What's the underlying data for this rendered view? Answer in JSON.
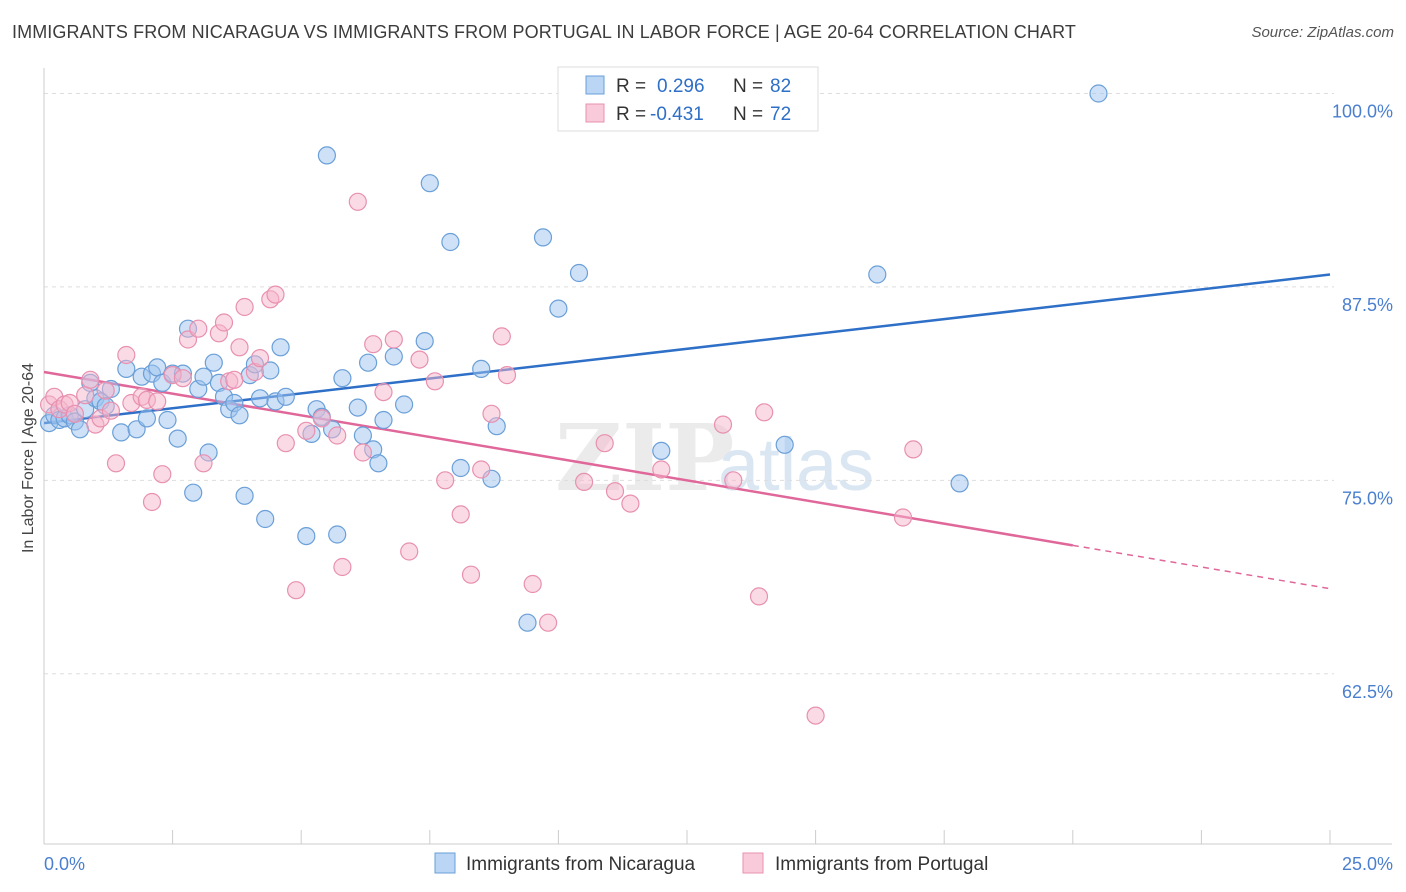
{
  "title": "IMMIGRANTS FROM NICARAGUA VS IMMIGRANTS FROM PORTUGAL IN LABOR FORCE | AGE 20-64 CORRELATION CHART",
  "source": "Source: ZipAtlas.com",
  "watermark": {
    "zip": "ZIP",
    "atlas": "atlas"
  },
  "colors": {
    "nicaragua_fill": "#9ec4ef",
    "nicaragua_stroke": "#6a9fd8",
    "nicaragua_line": "#2e6fc7",
    "portugal_fill": "#f6b5cb",
    "portugal_stroke": "#e890b0",
    "portugal_line": "#e0679a",
    "axis_text": "#4a7fcf",
    "grid": "#dddddd"
  },
  "legend_stats": [
    {
      "r_label": "R =",
      "r_value": "0.296",
      "n_label": "N =",
      "n_value": "82"
    },
    {
      "r_label": "R =",
      "r_value": "-0.431",
      "n_label": "N =",
      "n_value": "72"
    }
  ],
  "chart_data": {
    "type": "scatter",
    "ylabel": "In Labor Force | Age 20-64",
    "xlim": [
      0,
      25
    ],
    "ylim": [
      51.5,
      101
    ],
    "x_tick_labels": [
      "0.0%",
      "25.0%"
    ],
    "y_ticks": [
      {
        "value": 100,
        "label": "100.0%"
      },
      {
        "value": 87.5,
        "label": "87.5%"
      },
      {
        "value": 75,
        "label": "75.0%"
      },
      {
        "value": 62.5,
        "label": "62.5%"
      }
    ],
    "grid": true,
    "legend_position": "bottom-center",
    "series": [
      {
        "name": "Immigrants from Nicaragua",
        "trend": {
          "x": [
            0,
            25
          ],
          "y": [
            78.7,
            88.3
          ]
        },
        "points": [
          [
            0.1,
            78.7
          ],
          [
            0.2,
            79.2
          ],
          [
            0.3,
            78.9
          ],
          [
            0.4,
            79.0
          ],
          [
            0.5,
            79.2
          ],
          [
            0.6,
            78.8
          ],
          [
            0.7,
            78.3
          ],
          [
            0.8,
            79.6
          ],
          [
            0.9,
            81.3
          ],
          [
            1.0,
            80.3
          ],
          [
            1.1,
            80.1
          ],
          [
            1.2,
            79.8
          ],
          [
            1.3,
            80.9
          ],
          [
            1.5,
            78.1
          ],
          [
            1.6,
            82.2
          ],
          [
            1.8,
            78.3
          ],
          [
            1.9,
            81.7
          ],
          [
            2.0,
            79.0
          ],
          [
            2.1,
            81.9
          ],
          [
            2.2,
            82.3
          ],
          [
            2.3,
            81.3
          ],
          [
            2.4,
            78.9
          ],
          [
            2.5,
            81.9
          ],
          [
            2.6,
            77.7
          ],
          [
            2.7,
            81.9
          ],
          [
            2.8,
            84.8
          ],
          [
            2.9,
            74.2
          ],
          [
            3.0,
            80.9
          ],
          [
            3.1,
            81.7
          ],
          [
            3.2,
            76.8
          ],
          [
            3.3,
            82.6
          ],
          [
            3.4,
            81.3
          ],
          [
            3.5,
            80.4
          ],
          [
            3.6,
            79.6
          ],
          [
            3.7,
            80.0
          ],
          [
            3.8,
            79.2
          ],
          [
            3.9,
            74.0
          ],
          [
            4.0,
            81.8
          ],
          [
            4.1,
            82.5
          ],
          [
            4.2,
            80.3
          ],
          [
            4.3,
            72.5
          ],
          [
            4.4,
            82.1
          ],
          [
            4.5,
            80.1
          ],
          [
            4.6,
            83.6
          ],
          [
            4.7,
            80.4
          ],
          [
            5.1,
            71.4
          ],
          [
            5.2,
            78.0
          ],
          [
            5.3,
            79.6
          ],
          [
            5.4,
            79.1
          ],
          [
            5.5,
            96.0
          ],
          [
            5.6,
            78.3
          ],
          [
            5.7,
            71.5
          ],
          [
            5.8,
            81.6
          ],
          [
            6.1,
            79.7
          ],
          [
            6.2,
            77.9
          ],
          [
            6.3,
            82.6
          ],
          [
            6.4,
            77.0
          ],
          [
            6.5,
            76.1
          ],
          [
            6.6,
            78.9
          ],
          [
            6.8,
            83.0
          ],
          [
            7.0,
            79.9
          ],
          [
            7.4,
            84.0
          ],
          [
            7.5,
            94.2
          ],
          [
            7.9,
            90.4
          ],
          [
            8.1,
            75.8
          ],
          [
            8.5,
            82.2
          ],
          [
            8.7,
            75.1
          ],
          [
            8.8,
            78.5
          ],
          [
            9.4,
            65.8
          ],
          [
            9.7,
            90.7
          ],
          [
            10.0,
            86.1
          ],
          [
            10.4,
            88.4
          ],
          [
            12.0,
            76.9
          ],
          [
            14.4,
            77.3
          ],
          [
            16.2,
            88.3
          ],
          [
            17.8,
            74.8
          ],
          [
            20.5,
            100.0
          ]
        ]
      },
      {
        "name": "Immigrants from Portugal",
        "trend": {
          "x": [
            0,
            20
          ],
          "y": [
            82.0,
            70.8
          ]
        },
        "trend_dashed": {
          "x": [
            20,
            25
          ],
          "y": [
            70.8,
            68.0
          ]
        },
        "points": [
          [
            0.1,
            79.9
          ],
          [
            0.2,
            80.4
          ],
          [
            0.3,
            79.6
          ],
          [
            0.4,
            79.9
          ],
          [
            0.5,
            80.0
          ],
          [
            0.6,
            79.3
          ],
          [
            0.8,
            80.5
          ],
          [
            0.9,
            81.5
          ],
          [
            1.0,
            78.6
          ],
          [
            1.1,
            79.0
          ],
          [
            1.2,
            80.8
          ],
          [
            1.3,
            79.5
          ],
          [
            1.4,
            76.1
          ],
          [
            1.6,
            83.1
          ],
          [
            1.7,
            80.0
          ],
          [
            1.9,
            80.4
          ],
          [
            2.0,
            80.2
          ],
          [
            2.1,
            73.6
          ],
          [
            2.2,
            80.1
          ],
          [
            2.3,
            75.4
          ],
          [
            2.5,
            81.8
          ],
          [
            2.7,
            81.6
          ],
          [
            2.8,
            84.1
          ],
          [
            3.0,
            84.8
          ],
          [
            3.1,
            76.1
          ],
          [
            3.4,
            84.5
          ],
          [
            3.5,
            85.2
          ],
          [
            3.6,
            81.4
          ],
          [
            3.7,
            81.5
          ],
          [
            3.8,
            83.6
          ],
          [
            3.9,
            86.2
          ],
          [
            4.1,
            82.0
          ],
          [
            4.2,
            82.9
          ],
          [
            4.4,
            86.7
          ],
          [
            4.5,
            87.0
          ],
          [
            4.7,
            77.4
          ],
          [
            4.9,
            67.9
          ],
          [
            5.1,
            78.2
          ],
          [
            5.4,
            79.0
          ],
          [
            5.7,
            77.9
          ],
          [
            5.8,
            69.4
          ],
          [
            6.1,
            93.0
          ],
          [
            6.2,
            76.8
          ],
          [
            6.4,
            83.8
          ],
          [
            6.6,
            80.7
          ],
          [
            6.8,
            84.1
          ],
          [
            7.1,
            70.4
          ],
          [
            7.3,
            82.8
          ],
          [
            7.6,
            81.4
          ],
          [
            7.8,
            75.0
          ],
          [
            8.1,
            72.8
          ],
          [
            8.3,
            68.9
          ],
          [
            8.5,
            75.7
          ],
          [
            8.7,
            79.3
          ],
          [
            8.9,
            84.3
          ],
          [
            9.0,
            81.8
          ],
          [
            9.5,
            68.3
          ],
          [
            9.8,
            65.8
          ],
          [
            10.5,
            74.9
          ],
          [
            10.9,
            77.4
          ],
          [
            11.1,
            74.3
          ],
          [
            11.4,
            73.5
          ],
          [
            12.0,
            75.7
          ],
          [
            13.2,
            78.6
          ],
          [
            13.4,
            75.0
          ],
          [
            13.9,
            67.5
          ],
          [
            14.0,
            79.4
          ],
          [
            15.0,
            59.8
          ],
          [
            16.7,
            72.6
          ],
          [
            16.9,
            77.0
          ]
        ]
      }
    ]
  }
}
